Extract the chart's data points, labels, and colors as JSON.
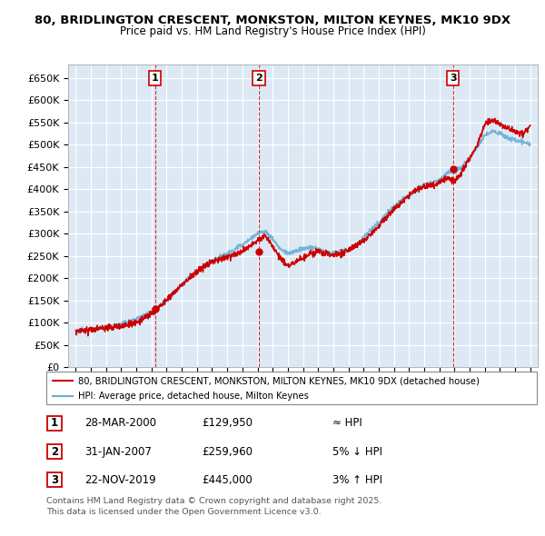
{
  "title_line1": "80, BRIDLINGTON CRESCENT, MONKSTON, MILTON KEYNES, MK10 9DX",
  "title_line2": "Price paid vs. HM Land Registry's House Price Index (HPI)",
  "background_color": "#ffffff",
  "plot_bg_color": "#dce9f5",
  "grid_color": "#ffffff",
  "sale_color": "#cc0000",
  "hpi_color": "#6baed6",
  "sale_dates_num": [
    2000.24,
    2007.08,
    2019.9
  ],
  "sale_prices": [
    129950,
    259960,
    445000
  ],
  "sale_labels": [
    "1",
    "2",
    "3"
  ],
  "ylim_min": 0,
  "ylim_max": 680000,
  "xlim_min": 1994.5,
  "xlim_max": 2025.5,
  "yticks": [
    0,
    50000,
    100000,
    150000,
    200000,
    250000,
    300000,
    350000,
    400000,
    450000,
    500000,
    550000,
    600000,
    650000
  ],
  "ytick_labels": [
    "£0",
    "£50K",
    "£100K",
    "£150K",
    "£200K",
    "£250K",
    "£300K",
    "£350K",
    "£400K",
    "£450K",
    "£500K",
    "£550K",
    "£600K",
    "£650K"
  ],
  "xticks": [
    1995,
    1996,
    1997,
    1998,
    1999,
    2000,
    2001,
    2002,
    2003,
    2004,
    2005,
    2006,
    2007,
    2008,
    2009,
    2010,
    2011,
    2012,
    2013,
    2014,
    2015,
    2016,
    2017,
    2018,
    2019,
    2020,
    2021,
    2022,
    2023,
    2024,
    2025
  ],
  "legend_sale_label": "80, BRIDLINGTON CRESCENT, MONKSTON, MILTON KEYNES, MK10 9DX (detached house)",
  "legend_hpi_label": "HPI: Average price, detached house, Milton Keynes",
  "table_data": [
    {
      "num": "1",
      "date": "28-MAR-2000",
      "price": "£129,950",
      "vs_hpi": "≈ HPI"
    },
    {
      "num": "2",
      "date": "31-JAN-2007",
      "price": "£259,960",
      "vs_hpi": "5% ↓ HPI"
    },
    {
      "num": "3",
      "date": "22-NOV-2019",
      "price": "£445,000",
      "vs_hpi": "3% ↑ HPI"
    }
  ],
  "footnote": "Contains HM Land Registry data © Crown copyright and database right 2025.\nThis data is licensed under the Open Government Licence v3.0."
}
